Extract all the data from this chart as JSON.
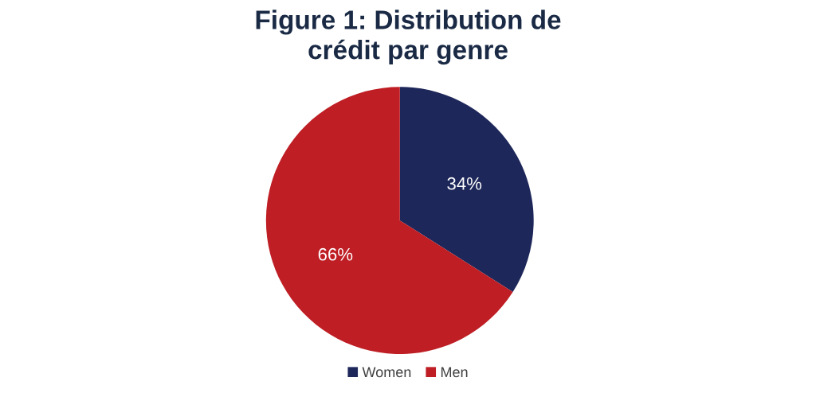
{
  "chart_data": {
    "type": "pie",
    "title": "Figure 1: Distribution de\ncrédit par genre",
    "categories": [
      "Women",
      "Men"
    ],
    "values": [
      34,
      66
    ],
    "colors": [
      "#1e275a",
      "#be1e24"
    ],
    "value_labels": [
      "34%",
      "66%"
    ],
    "legend": "bottom"
  }
}
